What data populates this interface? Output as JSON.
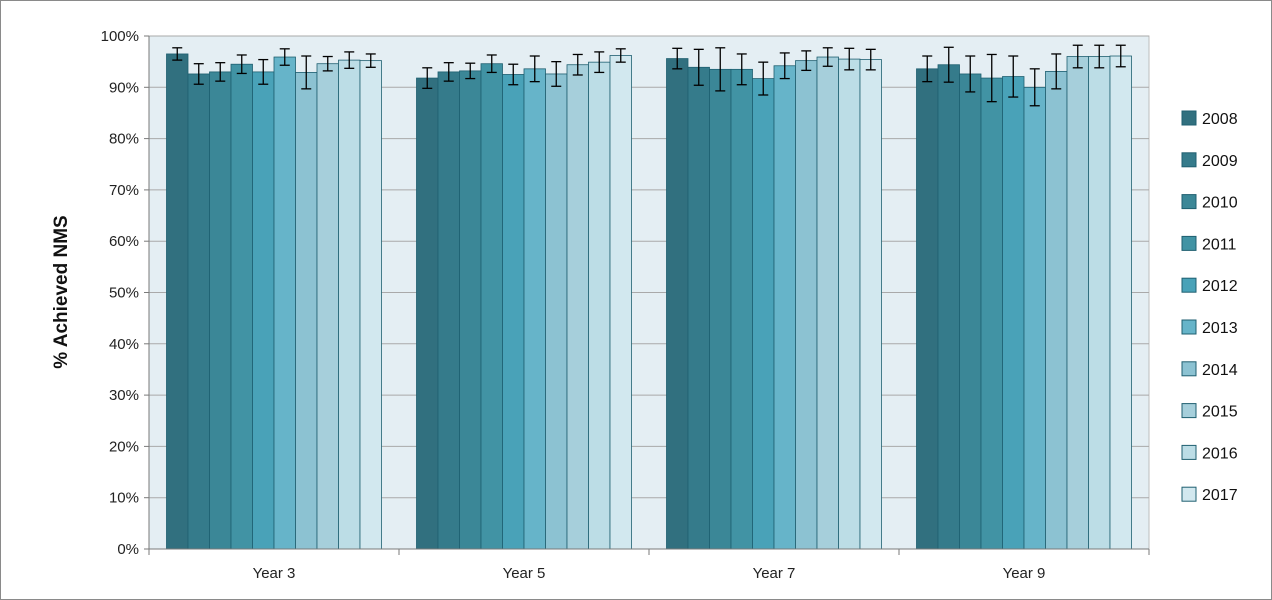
{
  "chart_data": {
    "type": "bar",
    "title": "",
    "xlabel": "",
    "ylabel": "% Achieved NMS",
    "ylim": [
      0,
      100
    ],
    "yticks": [
      "0%",
      "10%",
      "20%",
      "30%",
      "40%",
      "50%",
      "60%",
      "70%",
      "80%",
      "90%",
      "100%"
    ],
    "grid": true,
    "legend_position": "right",
    "categories": [
      "Year 3",
      "Year 5",
      "Year 7",
      "Year 9"
    ],
    "series": [
      {
        "name": "2008",
        "color": "#31707f",
        "values": [
          96.5,
          91.8,
          95.6,
          93.6
        ],
        "err": [
          1.2,
          2.0,
          2.0,
          2.5
        ]
      },
      {
        "name": "2009",
        "color": "#357b8b",
        "values": [
          92.6,
          93.0,
          93.9,
          94.4
        ],
        "err": [
          2.0,
          1.8,
          3.5,
          3.4
        ]
      },
      {
        "name": "2010",
        "color": "#3b8797",
        "values": [
          93.0,
          93.2,
          93.5,
          92.6
        ],
        "err": [
          1.8,
          1.5,
          4.2,
          3.5
        ]
      },
      {
        "name": "2011",
        "color": "#4193a4",
        "values": [
          94.5,
          94.6,
          93.5,
          91.8
        ],
        "err": [
          1.8,
          1.7,
          3.0,
          4.6
        ]
      },
      {
        "name": "2012",
        "color": "#49a2b8",
        "values": [
          93.0,
          92.5,
          91.7,
          92.1
        ],
        "err": [
          2.4,
          2.0,
          3.2,
          4.0
        ]
      },
      {
        "name": "2013",
        "color": "#66b4c9",
        "values": [
          95.9,
          93.6,
          94.2,
          90.0
        ],
        "err": [
          1.6,
          2.5,
          2.5,
          3.6
        ]
      },
      {
        "name": "2014",
        "color": "#8cc2d2",
        "values": [
          92.9,
          92.6,
          95.2,
          93.1
        ],
        "err": [
          3.2,
          2.4,
          1.9,
          3.4
        ]
      },
      {
        "name": "2015",
        "color": "#a6cfdb",
        "values": [
          94.6,
          94.4,
          95.9,
          96.0
        ],
        "err": [
          1.4,
          2.0,
          1.8,
          2.2
        ]
      },
      {
        "name": "2016",
        "color": "#bcdde6",
        "values": [
          95.3,
          94.9,
          95.5,
          96.0
        ],
        "err": [
          1.6,
          2.0,
          2.1,
          2.2
        ]
      },
      {
        "name": "2017",
        "color": "#d2e8ef",
        "values": [
          95.2,
          96.2,
          95.4,
          96.1
        ],
        "err": [
          1.3,
          1.3,
          2.0,
          2.1
        ]
      }
    ]
  }
}
